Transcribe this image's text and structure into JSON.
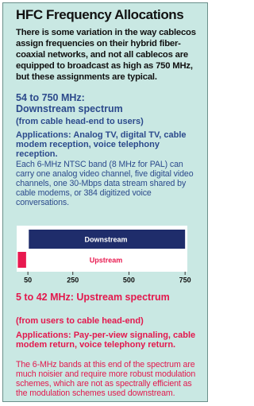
{
  "title": "HFC Frequency Allocations",
  "intro": "There is some variation in the way cablecos assign frequencies on their hybrid fiber-coaxial networks, and not all cablecos are equipped to broadcast as high as 750 MHz, but these assignments are typical.",
  "downstream": {
    "heading": [
      "54 to 750 MHz:",
      "Downstream spectrum"
    ],
    "subheading": "(from cable head-end to users)",
    "applications": "Applications: Analog TV, digital TV, cable modem reception, voice telephony reception.",
    "body": "Each 6-MHz NTSC band (8 MHz for PAL) can carry one analog video channel, five digital video channels, one 30-Mbps data stream shared by cable modems, or 384 digitized voice conversations."
  },
  "chart": {
    "bands": [
      {
        "name": "Downstream",
        "range": [
          54,
          750
        ],
        "color": "#1f2d6b",
        "text_color": "#ffffff"
      },
      {
        "name": "Upstream",
        "range": [
          5,
          42
        ],
        "color": "#e8194f",
        "text_color": "#e8194f"
      }
    ],
    "xlim": [
      0,
      760
    ],
    "xticks": [
      50,
      250,
      500,
      750
    ]
  },
  "upstream": {
    "heading": [
      "5 to 42 MHz: Upstream spectrum"
    ],
    "subheading": "(from users to cable head-end)",
    "applications": "Applications: Pay-per-view signaling, cable modem return, voice telephony return.",
    "body": "The 6-MHz bands at this end of the spectrum are much noisier and require more robust modulation schemes, which are not as spectrally efficient as the modulation schemes used downstream."
  }
}
